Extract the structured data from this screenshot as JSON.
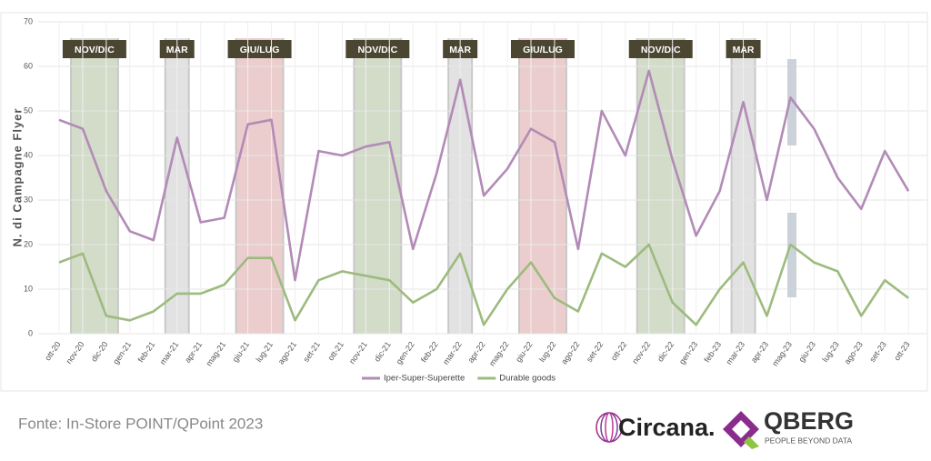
{
  "chart_data": {
    "type": "line",
    "y_label": "N. di Campagne Flyer",
    "categories": [
      "ott-20",
      "nov-20",
      "dic-20",
      "gen-21",
      "feb-21",
      "mar-21",
      "apr-21",
      "mag-21",
      "giu-21",
      "lug-21",
      "ago-21",
      "set-21",
      "ott-21",
      "nov-21",
      "dic-21",
      "gen-22",
      "feb-22",
      "mar-22",
      "apr-22",
      "mag-22",
      "giu-22",
      "lug-22",
      "ago-22",
      "set-22",
      "ott-22",
      "nov-22",
      "dic-22",
      "gen-23",
      "feb-23",
      "mar-23",
      "apr-23",
      "mag-23",
      "giu-23",
      "lug-23",
      "ago-23",
      "set-23",
      "ott-23"
    ],
    "series": [
      {
        "name": "Iper-Super-Superette",
        "color": "#b28bb6",
        "values": [
          48,
          46,
          32,
          23,
          21,
          44,
          25,
          26,
          47,
          48,
          12,
          41,
          40,
          42,
          43,
          19,
          36,
          57,
          31,
          37,
          46,
          43,
          19,
          50,
          40,
          59,
          39,
          22,
          32,
          52,
          30,
          53,
          46,
          35,
          28,
          41,
          32
        ]
      },
      {
        "name": "Durable goods",
        "color": "#9dbb7f",
        "values": [
          16,
          18,
          4,
          3,
          5,
          9,
          9,
          11,
          17,
          17,
          3,
          12,
          14,
          13,
          12,
          7,
          10,
          18,
          2,
          10,
          16,
          8,
          5,
          18,
          15,
          20,
          7,
          2,
          10,
          16,
          4,
          20,
          16,
          14,
          4,
          12,
          8
        ]
      }
    ],
    "periods": [
      {
        "label": "NOV/DIC",
        "from": "nov-20",
        "to": "dic-20",
        "color": "#d3dcc9"
      },
      {
        "label": "MAR",
        "from": "mar-21",
        "to": "mar-21",
        "color": "#e2e2e2"
      },
      {
        "label": "GIU/LUG",
        "from": "giu-21",
        "to": "lug-21",
        "color": "#eccdcd"
      },
      {
        "label": "NOV/DIC",
        "from": "nov-21",
        "to": "dic-21",
        "color": "#d3dcc9"
      },
      {
        "label": "MAR",
        "from": "mar-22",
        "to": "mar-22",
        "color": "#e2e2e2"
      },
      {
        "label": "GIU/LUG",
        "from": "giu-22",
        "to": "lug-22",
        "color": "#eccdcd"
      },
      {
        "label": "NOV/DIC",
        "from": "nov-22",
        "to": "dic-22",
        "color": "#d3dcc9"
      },
      {
        "label": "MAR",
        "from": "mar-23",
        "to": "mar-23",
        "color": "#e2e2e2"
      }
    ],
    "ylim": [
      0,
      70
    ],
    "yticks": [
      0,
      10,
      20,
      30,
      40,
      50,
      60,
      70
    ],
    "grid": true,
    "legend": "bottom"
  },
  "footer": {
    "source": "Fonte: In-Store POINT/QPoint 2023",
    "logo1": "Circana.",
    "logo2": "QBERG",
    "logo2_tagline": "PEOPLE BEYOND DATA"
  }
}
